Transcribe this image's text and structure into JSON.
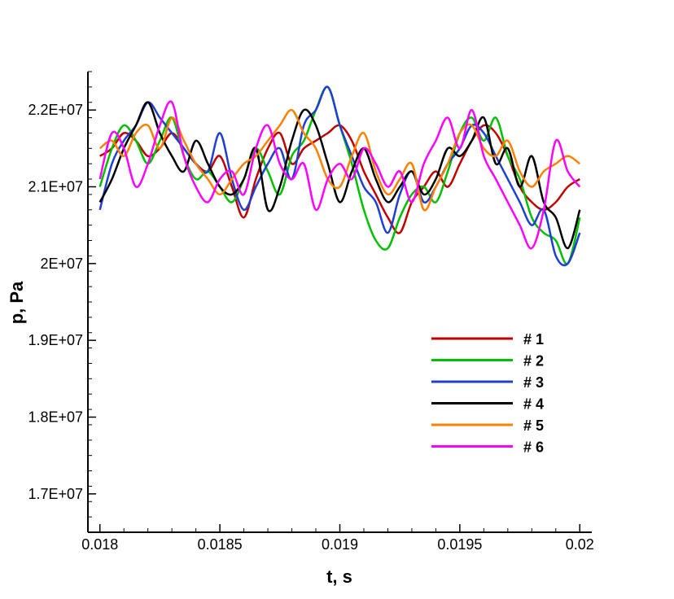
{
  "chart_data": {
    "type": "line",
    "xlabel": "t, s",
    "ylabel": "p, Pa",
    "xlim": [
      0.01795,
      0.02005
    ],
    "ylim": [
      16500000,
      22500000
    ],
    "x_ticks": [
      0.018,
      0.0185,
      0.019,
      0.0195,
      0.02
    ],
    "x_tick_labels": [
      "0.018",
      "0.0185",
      "0.019",
      "0.0195",
      "0.02"
    ],
    "y_ticks": [
      17000000,
      18000000,
      19000000,
      20000000,
      21000000,
      22000000
    ],
    "y_tick_labels": [
      "1.7E+07",
      "1.8E+07",
      "1.9E+07",
      "2E+07",
      "2.1E+07",
      "2.2E+07"
    ],
    "grid": false,
    "legend_position": "bottom-right",
    "series": [
      {
        "name": "# 1",
        "color": "#c00000",
        "x": [
          0.018,
          0.01805,
          0.0181,
          0.01815,
          0.0182,
          0.01825,
          0.0183,
          0.01835,
          0.0184,
          0.01845,
          0.0185,
          0.01855,
          0.0186,
          0.01865,
          0.0187,
          0.01875,
          0.0188,
          0.01885,
          0.0189,
          0.01895,
          0.019,
          0.01905,
          0.0191,
          0.01915,
          0.0192,
          0.01925,
          0.0193,
          0.01935,
          0.0194,
          0.01945,
          0.0195,
          0.01955,
          0.0196,
          0.01965,
          0.0197,
          0.01975,
          0.0198,
          0.01985,
          0.0199,
          0.01995,
          0.02
        ],
        "y": [
          21400000,
          21500000,
          21700000,
          21600000,
          21400000,
          21500000,
          21700000,
          21500000,
          21300000,
          21200000,
          21400000,
          21000000,
          20600000,
          21100000,
          21500000,
          21700000,
          21300000,
          21500000,
          21600000,
          21700000,
          21800000,
          21600000,
          21200000,
          20900000,
          20600000,
          20400000,
          20800000,
          21000000,
          21200000,
          21000000,
          21300000,
          21600000,
          21800000,
          21700000,
          21400000,
          21000000,
          20800000,
          20700000,
          20800000,
          21000000,
          21100000
        ]
      },
      {
        "name": "# 2",
        "color": "#00c000",
        "x": [
          0.018,
          0.01805,
          0.0181,
          0.01815,
          0.0182,
          0.01825,
          0.0183,
          0.01835,
          0.0184,
          0.01845,
          0.0185,
          0.01855,
          0.0186,
          0.01865,
          0.0187,
          0.01875,
          0.0188,
          0.01885,
          0.0189,
          0.01895,
          0.019,
          0.01905,
          0.0191,
          0.01915,
          0.0192,
          0.01925,
          0.0193,
          0.01935,
          0.0194,
          0.01945,
          0.0195,
          0.01955,
          0.0196,
          0.01965,
          0.0197,
          0.01975,
          0.0198,
          0.01985,
          0.0199,
          0.01995,
          0.02
        ],
        "y": [
          21000000,
          21500000,
          21800000,
          21600000,
          21300000,
          21600000,
          21900000,
          21400000,
          21100000,
          21200000,
          21000000,
          20800000,
          21100000,
          21500000,
          21200000,
          20900000,
          21400000,
          21600000,
          22000000,
          22300000,
          21800000,
          21300000,
          20700000,
          20300000,
          20200000,
          20600000,
          20900000,
          21000000,
          20800000,
          21200000,
          21700000,
          21900000,
          21600000,
          21900000,
          21400000,
          21100000,
          20600000,
          20400000,
          20300000,
          20000000,
          20600000
        ]
      },
      {
        "name": "# 3",
        "color": "#1f3fd0",
        "x": [
          0.018,
          0.01805,
          0.0181,
          0.01815,
          0.0182,
          0.01825,
          0.0183,
          0.01835,
          0.0184,
          0.01845,
          0.0185,
          0.01855,
          0.0186,
          0.01865,
          0.0187,
          0.01875,
          0.0188,
          0.01885,
          0.0189,
          0.01895,
          0.019,
          0.01905,
          0.0191,
          0.01915,
          0.0192,
          0.01925,
          0.0193,
          0.01935,
          0.0194,
          0.01945,
          0.0195,
          0.01955,
          0.0196,
          0.01965,
          0.0197,
          0.01975,
          0.0198,
          0.01985,
          0.0199,
          0.01995,
          0.02
        ],
        "y": [
          20700000,
          21300000,
          21600000,
          21800000,
          22100000,
          21900000,
          21700000,
          21500000,
          21300000,
          21200000,
          21700000,
          21100000,
          20700000,
          21000000,
          21300000,
          21500000,
          21100000,
          21800000,
          22000000,
          22300000,
          21800000,
          21400000,
          21000000,
          20800000,
          20400000,
          20900000,
          21200000,
          20800000,
          21000000,
          21300000,
          21500000,
          21800000,
          21700000,
          21400000,
          21100000,
          20800000,
          20500000,
          20700000,
          20100000,
          20000000,
          20400000
        ]
      },
      {
        "name": "# 4",
        "color": "#000000",
        "x": [
          0.018,
          0.01805,
          0.0181,
          0.01815,
          0.0182,
          0.01825,
          0.0183,
          0.01835,
          0.0184,
          0.01845,
          0.0185,
          0.01855,
          0.0186,
          0.01865,
          0.0187,
          0.01875,
          0.0188,
          0.01885,
          0.0189,
          0.01895,
          0.019,
          0.01905,
          0.0191,
          0.01915,
          0.0192,
          0.01925,
          0.0193,
          0.01935,
          0.0194,
          0.01945,
          0.0195,
          0.01955,
          0.0196,
          0.01965,
          0.0197,
          0.01975,
          0.0198,
          0.01985,
          0.0199,
          0.01995,
          0.02
        ],
        "y": [
          20800000,
          21100000,
          21500000,
          21800000,
          22100000,
          21700000,
          21400000,
          21200000,
          21600000,
          21300000,
          21000000,
          20900000,
          21100000,
          21500000,
          20700000,
          21000000,
          21600000,
          22000000,
          21800000,
          21300000,
          20800000,
          21200000,
          21500000,
          21100000,
          20800000,
          21000000,
          21200000,
          20900000,
          21100000,
          21500000,
          21400000,
          21600000,
          21900000,
          21300000,
          21500000,
          21000000,
          21400000,
          20800000,
          20600000,
          20200000,
          20700000
        ]
      },
      {
        "name": "# 5",
        "color": "#ff8000",
        "x": [
          0.018,
          0.01805,
          0.0181,
          0.01815,
          0.0182,
          0.01825,
          0.0183,
          0.01835,
          0.0184,
          0.01845,
          0.0185,
          0.01855,
          0.0186,
          0.01865,
          0.0187,
          0.01875,
          0.0188,
          0.01885,
          0.0189,
          0.01895,
          0.019,
          0.01905,
          0.0191,
          0.01915,
          0.0192,
          0.01925,
          0.0193,
          0.01935,
          0.0194,
          0.01945,
          0.0195,
          0.01955,
          0.0196,
          0.01965,
          0.0197,
          0.01975,
          0.0198,
          0.01985,
          0.0199,
          0.01995,
          0.02
        ],
        "y": [
          21500000,
          21600000,
          21400000,
          21700000,
          21800000,
          21500000,
          21900000,
          21600000,
          21300000,
          21100000,
          20900000,
          21100000,
          21300000,
          21400000,
          21600000,
          21800000,
          22000000,
          21700000,
          21500000,
          21100000,
          21000000,
          21400000,
          21700000,
          21200000,
          20900000,
          21100000,
          21300000,
          20700000,
          21000000,
          21300000,
          21700000,
          21800000,
          21500000,
          21400000,
          21600000,
          21200000,
          21000000,
          21200000,
          21300000,
          21400000,
          21300000
        ]
      },
      {
        "name": "# 6",
        "color": "#ff00ff",
        "x": [
          0.018,
          0.01805,
          0.0181,
          0.01815,
          0.0182,
          0.01825,
          0.0183,
          0.01835,
          0.0184,
          0.01845,
          0.0185,
          0.01855,
          0.0186,
          0.01865,
          0.0187,
          0.01875,
          0.0188,
          0.01885,
          0.0189,
          0.01895,
          0.019,
          0.01905,
          0.0191,
          0.01915,
          0.0192,
          0.01925,
          0.0193,
          0.01935,
          0.0194,
          0.01945,
          0.0195,
          0.01955,
          0.0196,
          0.01965,
          0.0197,
          0.01975,
          0.0198,
          0.01985,
          0.0199,
          0.01995,
          0.02
        ],
        "y": [
          21100000,
          21700000,
          21500000,
          21000000,
          21300000,
          21800000,
          22100000,
          21400000,
          21000000,
          20800000,
          21100000,
          21200000,
          20900000,
          21500000,
          21800000,
          21300000,
          21100000,
          21300000,
          20700000,
          21100000,
          21300000,
          21100000,
          21500000,
          21300000,
          21000000,
          21200000,
          20800000,
          21300000,
          21600000,
          21900000,
          21500000,
          22000000,
          21400000,
          21100000,
          20800000,
          20500000,
          20200000,
          20700000,
          21600000,
          21200000,
          21000000
        ]
      }
    ]
  }
}
